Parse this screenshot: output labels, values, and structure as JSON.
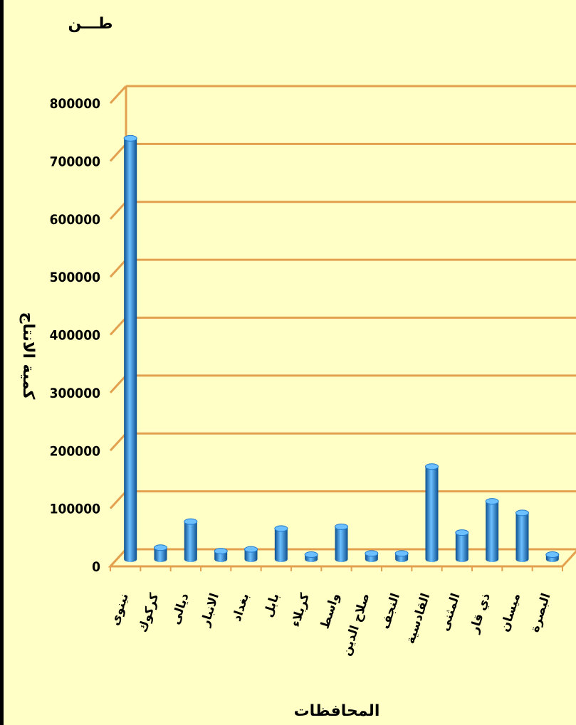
{
  "chart_data": {
    "type": "bar",
    "unit": "طـــن",
    "ylabel": "كمية الانتاج",
    "xlabel": "المحافظات",
    "ylim": [
      0,
      800000
    ],
    "yticks": [
      "0",
      "100000",
      "200000",
      "300000",
      "400000",
      "500000",
      "600000",
      "700000",
      "800000"
    ],
    "grid": true,
    "categories": [
      "نينوى",
      "كركوك",
      "ديالى",
      "الانبار",
      "بغداد",
      "بابل",
      "كربلاء",
      "واسط",
      "صلاح الدين",
      "النجف",
      "القادسية",
      "المثنى",
      "ذي قار",
      "ميسان",
      "البصرة"
    ],
    "values": [
      727000,
      20000,
      65000,
      14000,
      17000,
      53000,
      8000,
      56000,
      10000,
      10000,
      160000,
      46000,
      100000,
      80000,
      8000
    ],
    "colors": {
      "background": "#ffffc6",
      "grid": "#e3a04e",
      "bar": "#1f78cc",
      "bar_light": "#6cc0ff",
      "bar_dark": "#0d4f8f"
    }
  }
}
